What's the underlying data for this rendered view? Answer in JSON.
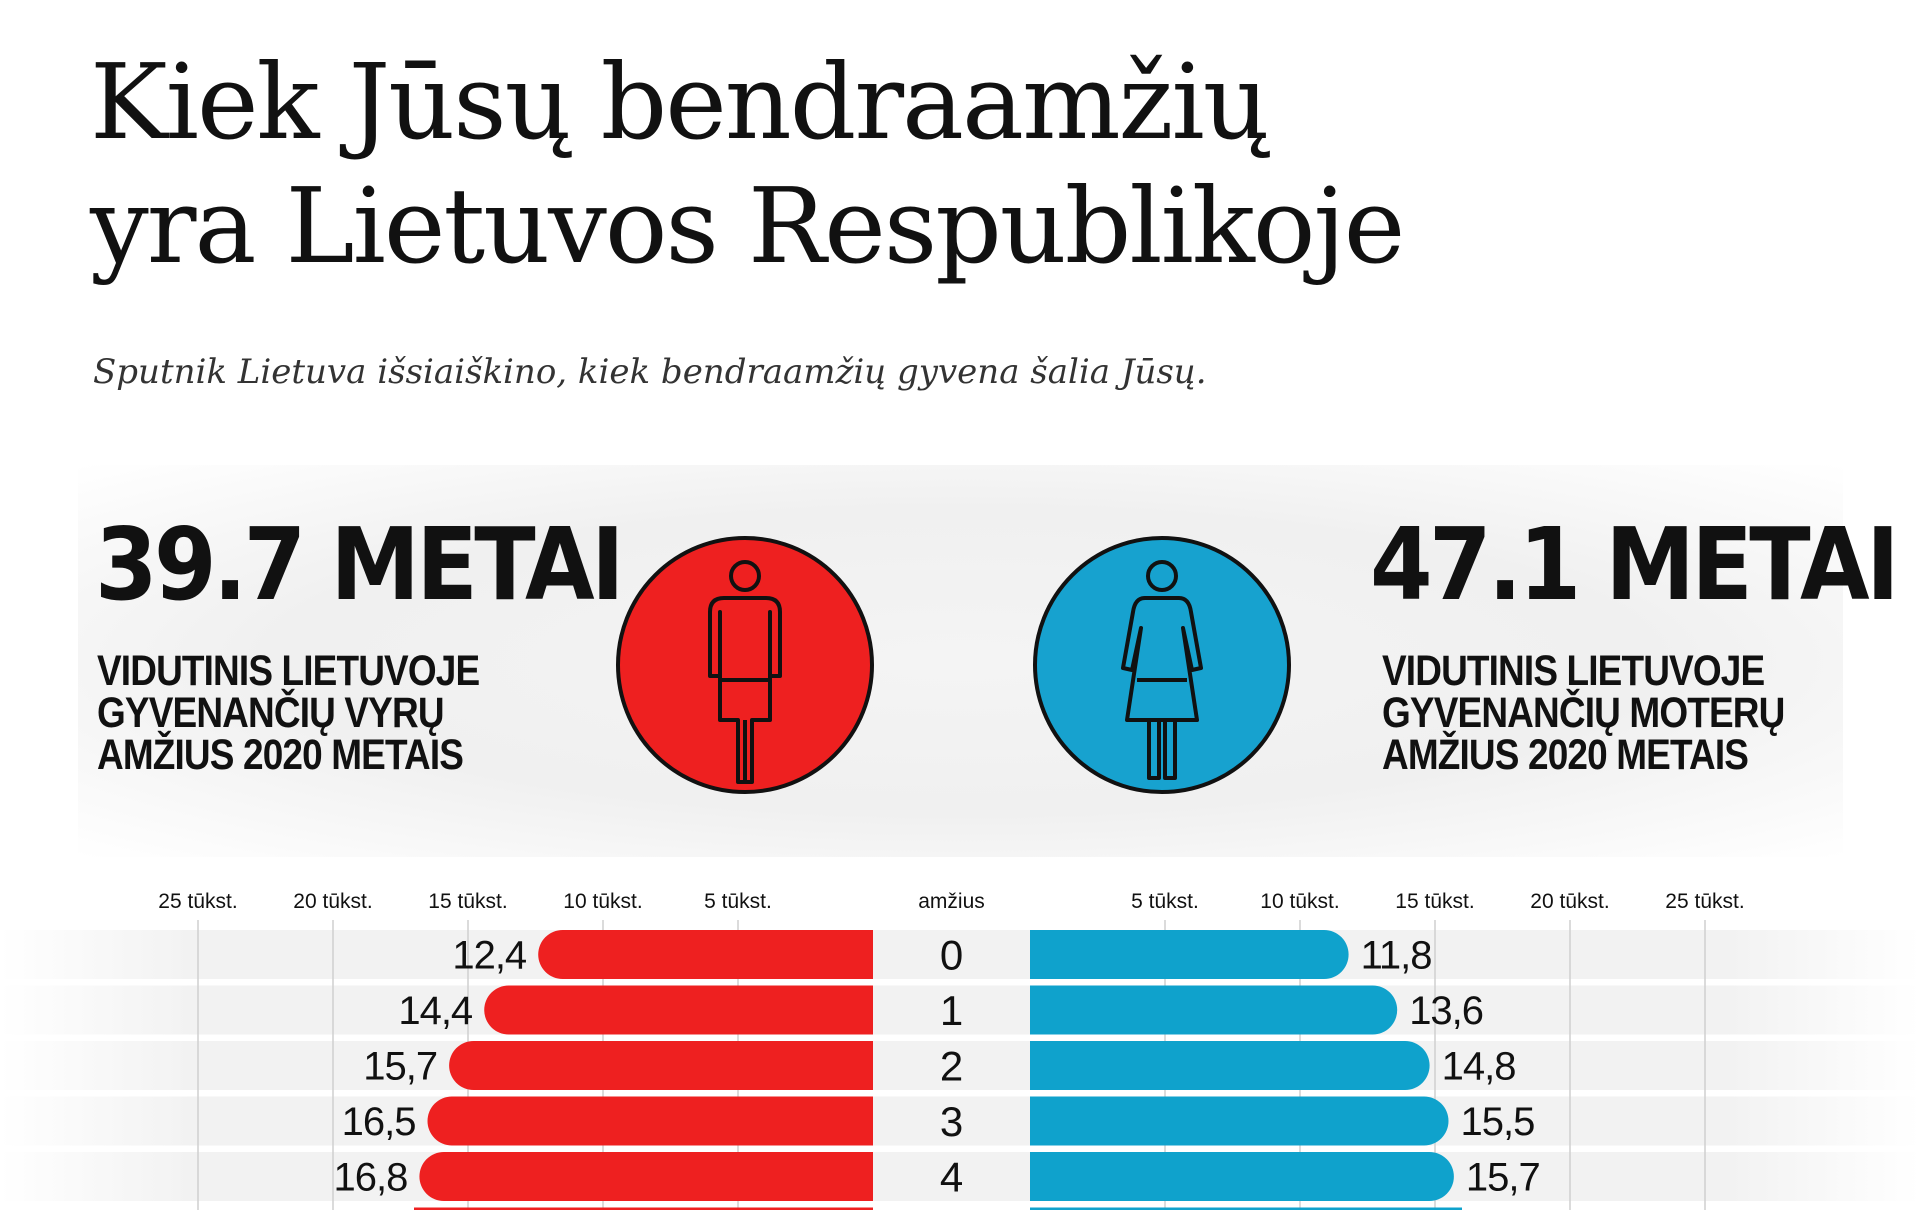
{
  "title_lines": [
    "Kiek Jūsų bendraamžių",
    "yra Lietuvos Respublikoje"
  ],
  "subtitle": "Sputnik Lietuva išsiaiškino, kiek bendraamžių gyvena šalia Jūsų.",
  "men": {
    "value": "39.7 METAI",
    "description": "VIDUTINIS LIETUVOJE\nGYVENANČIŲ VYRŲ\nAMŽIUS 2020 METAIS",
    "color": "#ee2020",
    "icon": "man-icon"
  },
  "women": {
    "value": "47.1 METAI",
    "description": "VIDUTINIS LIETUVOJE\nGYVENANČIŲ MOTERŲ\nAMŽIUS 2020 METAIS",
    "color": "#17a2cf",
    "icon": "woman-icon"
  },
  "chart_data": {
    "type": "bar",
    "orientation": "horizontal-butterfly",
    "center_label": "amžius",
    "categories": [
      "0",
      "1",
      "2",
      "3",
      "4"
    ],
    "tick_values": [
      5,
      10,
      15,
      20,
      25
    ],
    "tick_labels": [
      "5 tūkst.",
      "10 tūkst.",
      "15 tūkst.",
      "20 tūkst.",
      "25 tūkst."
    ],
    "grid": true,
    "series": [
      {
        "side": "left",
        "color": "#ee2020",
        "values": [
          12.4,
          14.4,
          15.7,
          16.5,
          16.8
        ],
        "labels": [
          "12,4",
          "14,4",
          "15,7",
          "16,5",
          "16,8"
        ]
      },
      {
        "side": "right",
        "color": "#0fa2cc",
        "values": [
          11.8,
          13.6,
          14.8,
          15.5,
          15.7
        ],
        "labels": [
          "11,8",
          "13,6",
          "14,8",
          "15,5",
          "15,7"
        ]
      }
    ]
  }
}
